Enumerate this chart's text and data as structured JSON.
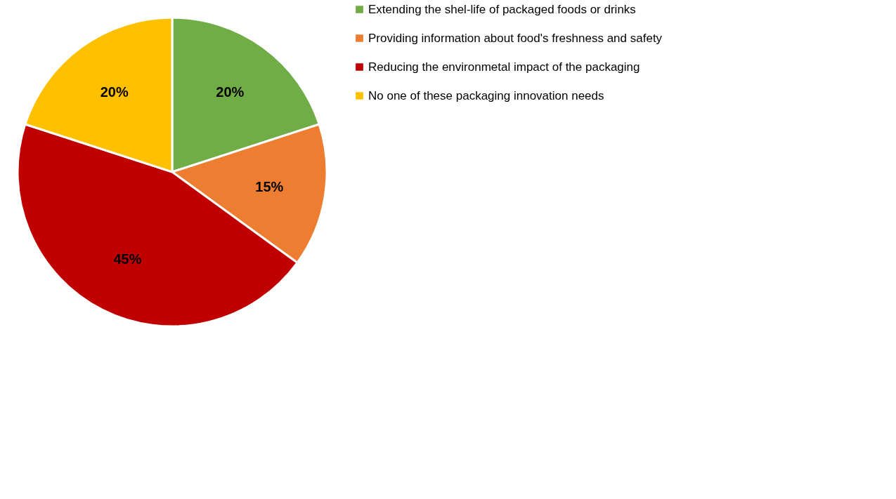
{
  "chart_data": {
    "type": "pie",
    "categories": [
      "Extending the shel-life of packaged foods or drinks",
      "Providing information about food's freshness and safety",
      "Reducing the environmetal impact of the packaging",
      "No one of these packaging innovation needs"
    ],
    "values": [
      20,
      15,
      45,
      20
    ],
    "colors": [
      "#70ad47",
      "#ed7d31",
      "#c00000",
      "#ffc000"
    ],
    "value_labels": [
      "20%",
      "15%",
      "45%",
      "20%"
    ],
    "legend": "right"
  }
}
